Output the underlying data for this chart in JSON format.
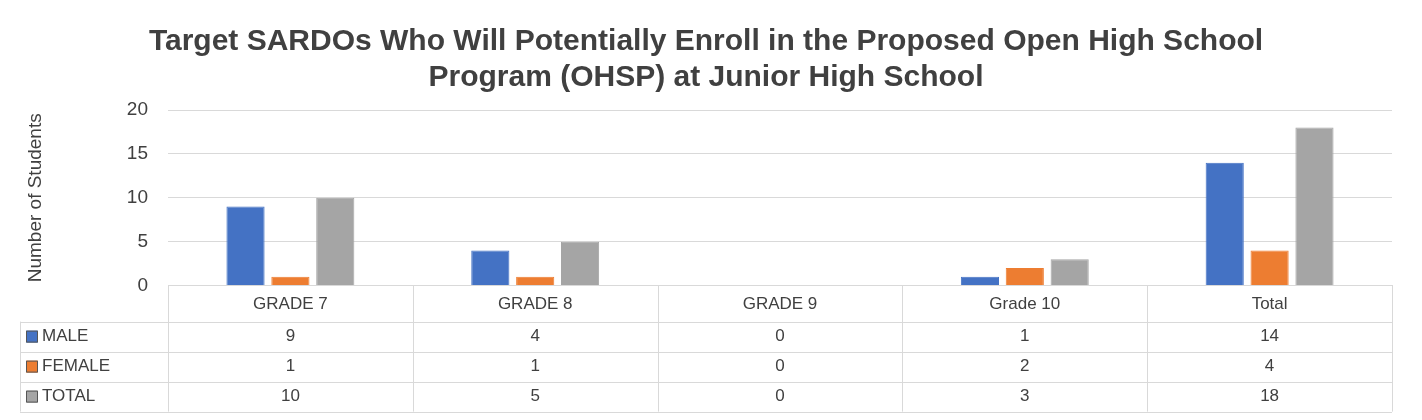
{
  "chart_data": {
    "type": "bar",
    "title": "Target SARDOs Who Will Potentially Enroll in the Proposed Open High School Program (OHSP) at Junior High School",
    "ylabel": "Number of Students",
    "categories": [
      "GRADE 7",
      "GRADE 8",
      "GRADE 9",
      "Grade 10",
      "Total"
    ],
    "series": [
      {
        "name": "MALE",
        "color": "#4472c4",
        "values": [
          9,
          4,
          0,
          1,
          14
        ]
      },
      {
        "name": "FEMALE",
        "color": "#ed7d31",
        "values": [
          1,
          1,
          0,
          2,
          4
        ]
      },
      {
        "name": "TOTAL",
        "color": "#a5a5a5",
        "values": [
          10,
          5,
          0,
          3,
          18
        ]
      }
    ],
    "ylim": [
      0,
      20
    ],
    "yticks": [
      0,
      5,
      10,
      15,
      20
    ],
    "grid": "y",
    "legend": "bottom",
    "data_labels": true
  }
}
